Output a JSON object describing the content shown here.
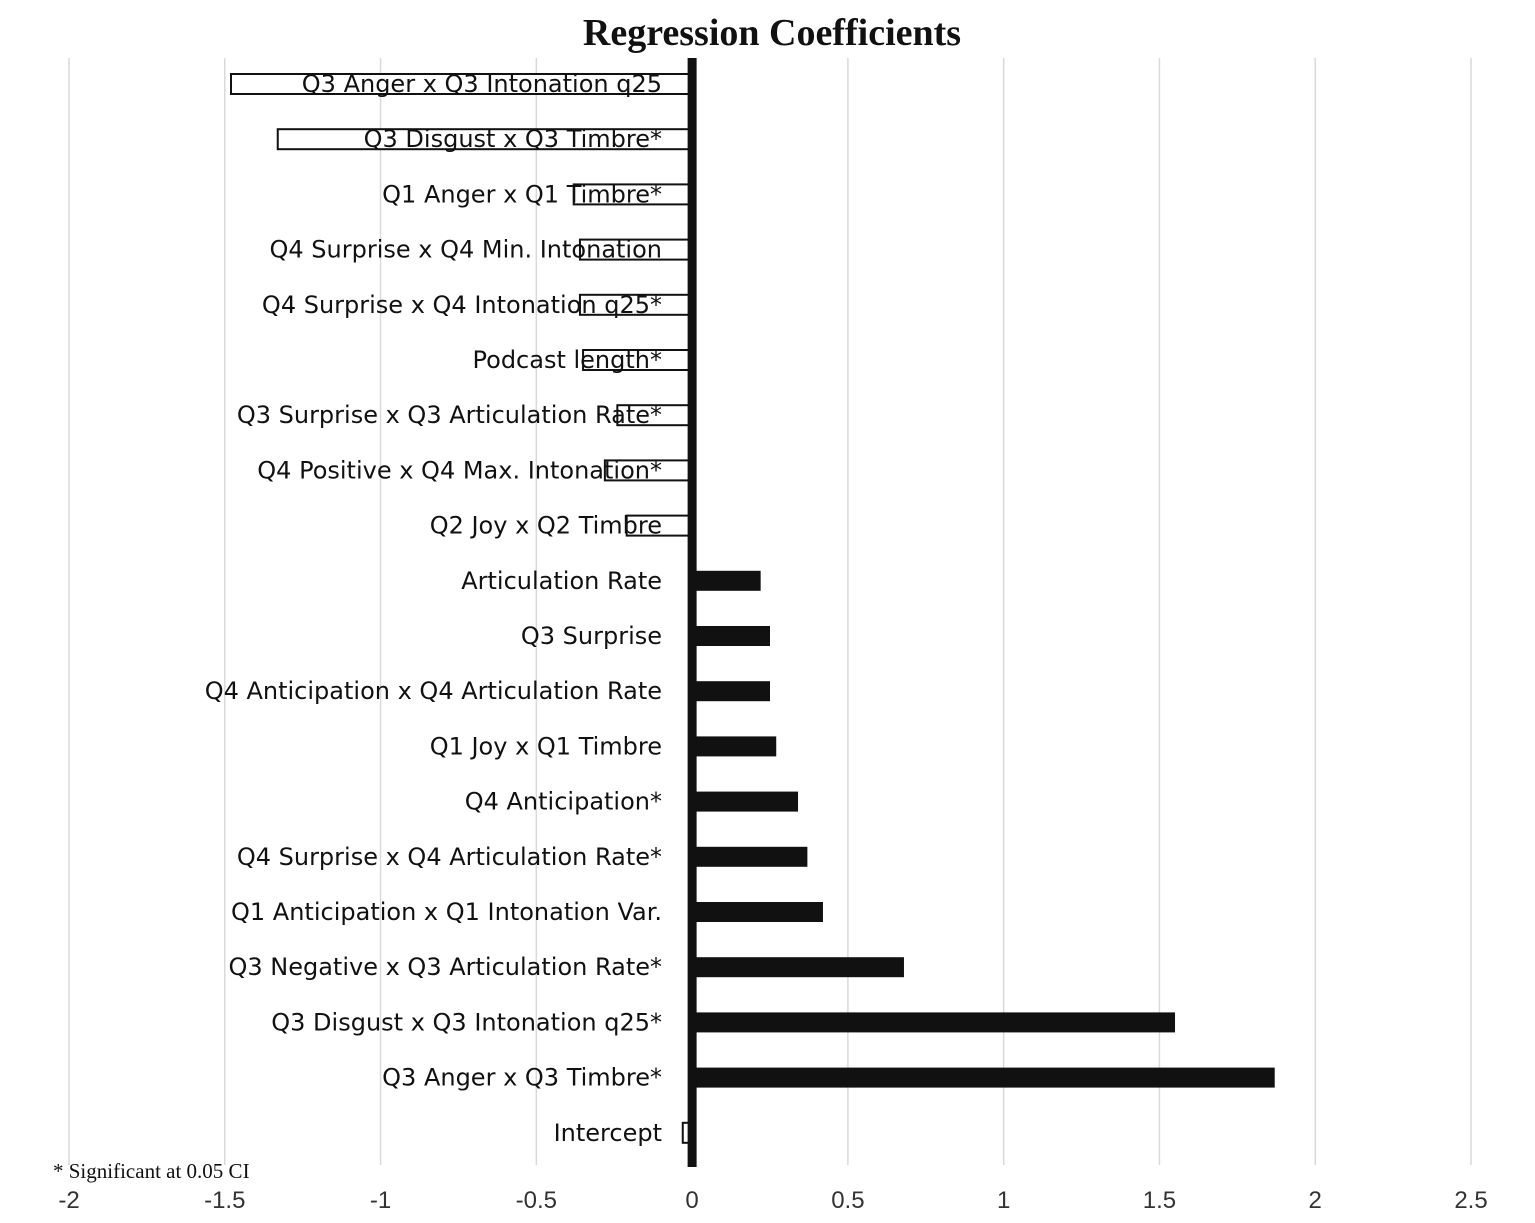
{
  "chart_data": {
    "type": "bar",
    "orientation": "horizontal",
    "title": "Regression Coefficients",
    "xlabel": "",
    "ylabel": "",
    "xlim": [
      -2,
      2.5
    ],
    "x_ticks": [
      "-2",
      "-1.5",
      "-1",
      "-0.5",
      "0",
      "0.5",
      "1",
      "1.5",
      "2",
      "2.5"
    ],
    "grid": true,
    "legend": "none",
    "footnote": "* Significant at 0.05 CI",
    "negative_bar_style": "outlined",
    "positive_bar_style": "filled",
    "bar_color": "#111111",
    "categories": [
      "Q3 Anger x Q3 Intonation q25",
      "Q3 Disgust x Q3 Timbre*",
      "Q1 Anger x Q1 Timbre*",
      "Q4 Surprise x Q4 Min. Intonation",
      "Q4 Surprise x Q4 Intonation q25*",
      "Podcast length*",
      "Q3 Surprise x Q3 Articulation Rate*",
      "Q4 Positive x Q4 Max. Intonation*",
      "Q2 Joy x Q2 Timbre",
      "Articulation Rate",
      "Q3 Surprise",
      "Q4 Anticipation x Q4 Articulation Rate",
      "Q1 Joy x Q1 Timbre",
      "Q4 Anticipation*",
      "Q4 Surprise x Q4 Articulation Rate*",
      "Q1 Anticipation x Q1 Intonation Var.",
      "Q3 Negative x Q3 Articulation Rate*",
      "Q3 Disgust x Q3 Intonation q25*",
      "Q3 Anger x Q3 Timbre*",
      "Intercept"
    ],
    "values": [
      -1.48,
      -1.33,
      -0.38,
      -0.36,
      -0.36,
      -0.35,
      -0.24,
      -0.28,
      -0.21,
      0.22,
      0.25,
      0.25,
      0.27,
      0.34,
      0.37,
      0.42,
      0.68,
      1.55,
      1.87,
      -0.03
    ]
  }
}
